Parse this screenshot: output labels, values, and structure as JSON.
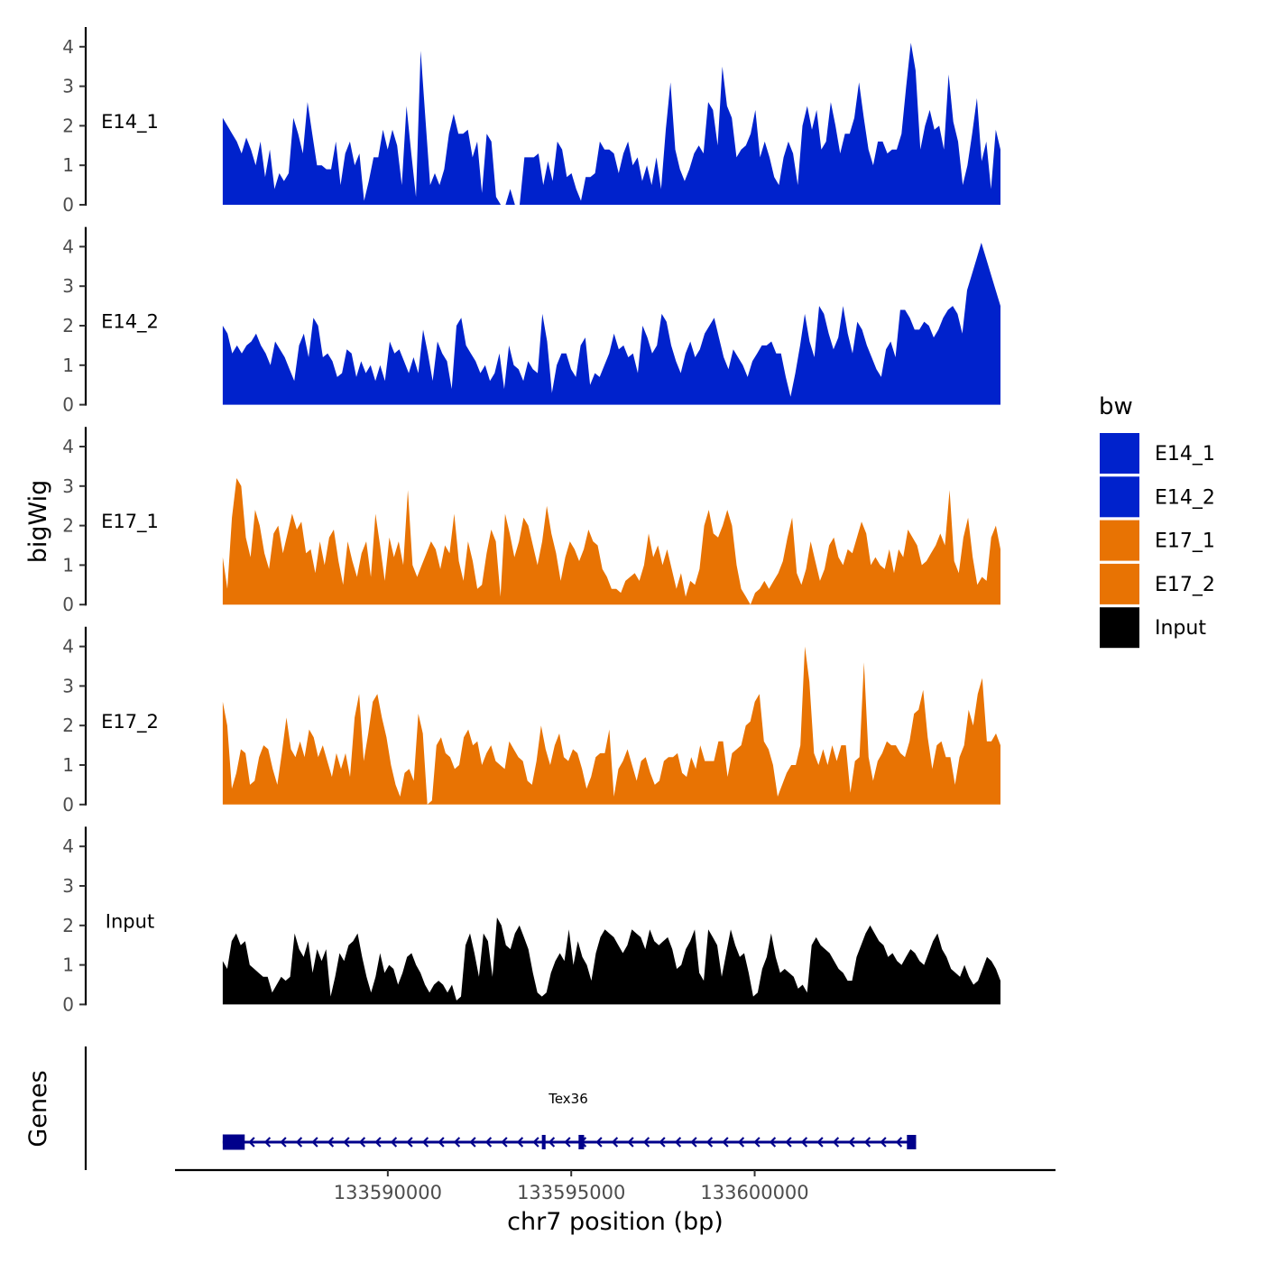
{
  "chart_data": {
    "type": "area",
    "ylabel": "bigWig",
    "xlabel": "chr7 position (bp)",
    "genes_label": "Genes",
    "ylim": [
      0,
      4.3
    ],
    "yticks": [
      0,
      1,
      2,
      3,
      4
    ],
    "xlim": [
      133584200,
      133608200
    ],
    "xticks": [
      133590000,
      133595000,
      133600000
    ],
    "xtick_labels": [
      "133590000",
      "133595000",
      "133600000"
    ],
    "x_start": 133585500,
    "x_end": 133606700,
    "legend": {
      "title": "bw",
      "position": "right"
    },
    "series": [
      {
        "name": "E14_1",
        "color": "#0022CC",
        "values": [
          2.2,
          2.0,
          1.8,
          1.6,
          1.3,
          1.7,
          1.4,
          1.0,
          1.6,
          0.7,
          1.4,
          0.4,
          0.8,
          0.6,
          0.8,
          2.2,
          1.8,
          1.3,
          2.6,
          1.8,
          1.0,
          1.0,
          0.9,
          0.9,
          1.6,
          0.5,
          1.3,
          1.6,
          1.0,
          1.3,
          0.1,
          0.6,
          1.2,
          1.2,
          1.9,
          1.4,
          1.9,
          1.5,
          0.5,
          2.5,
          1.3,
          0.2,
          3.9,
          2.2,
          0.5,
          0.8,
          0.5,
          0.9,
          1.8,
          2.3,
          1.8,
          1.8,
          1.9,
          1.2,
          1.6,
          0.3,
          1.8,
          1.6,
          0.2,
          0.0,
          0.0,
          0.4,
          0.0,
          0.0,
          1.2,
          1.2,
          1.2,
          1.3,
          0.5,
          1.1,
          0.6,
          1.6,
          1.4,
          0.7,
          0.8,
          0.4,
          0.1,
          0.7,
          0.7,
          0.8,
          1.6,
          1.4,
          1.4,
          1.3,
          0.8,
          1.3,
          1.6,
          1.0,
          1.2,
          0.6,
          1.0,
          0.5,
          1.2,
          0.4,
          1.9,
          3.1,
          1.4,
          0.9,
          0.6,
          0.9,
          1.3,
          1.5,
          1.3,
          2.6,
          2.4,
          1.5,
          3.5,
          2.5,
          2.2,
          1.2,
          1.4,
          1.5,
          1.8,
          2.4,
          1.2,
          1.6,
          1.2,
          0.7,
          0.5,
          1.2,
          1.6,
          1.3,
          0.5,
          2.0,
          2.5,
          1.9,
          2.4,
          1.4,
          1.6,
          2.6,
          2.0,
          1.3,
          1.8,
          1.8,
          2.2,
          3.1,
          2.2,
          1.4,
          1.0,
          1.6,
          1.6,
          1.3,
          1.4,
          1.4,
          1.8,
          3.0,
          4.1,
          3.4,
          1.4,
          2.0,
          2.4,
          1.9,
          2.0,
          1.4,
          3.3,
          2.1,
          1.6,
          0.5,
          1.0,
          1.8,
          2.7,
          1.1,
          1.6,
          0.4,
          1.9,
          1.4
        ]
      },
      {
        "name": "E14_2",
        "color": "#0022CC",
        "values": [
          2.0,
          1.8,
          1.3,
          1.5,
          1.3,
          1.5,
          1.6,
          1.8,
          1.5,
          1.3,
          1.0,
          1.6,
          1.4,
          1.2,
          0.9,
          0.6,
          1.5,
          1.8,
          1.2,
          2.2,
          2.0,
          1.2,
          1.3,
          1.1,
          0.7,
          0.8,
          1.4,
          1.3,
          0.7,
          1.1,
          0.8,
          1.0,
          0.6,
          1.0,
          0.6,
          1.6,
          1.3,
          1.4,
          1.1,
          0.8,
          1.2,
          0.8,
          1.9,
          1.3,
          0.6,
          1.6,
          1.3,
          1.1,
          0.4,
          2.0,
          2.2,
          1.5,
          1.3,
          1.1,
          0.8,
          1.0,
          0.6,
          0.8,
          1.3,
          0.4,
          1.5,
          1.0,
          0.9,
          0.6,
          1.1,
          0.9,
          0.8,
          2.3,
          1.6,
          0.3,
          1.0,
          1.3,
          1.3,
          0.9,
          0.7,
          1.5,
          1.7,
          0.5,
          0.8,
          0.7,
          1.0,
          1.3,
          1.8,
          1.4,
          1.5,
          1.2,
          1.3,
          0.8,
          2.0,
          1.7,
          1.3,
          1.5,
          2.3,
          2.1,
          1.5,
          1.1,
          0.8,
          1.3,
          1.6,
          1.2,
          1.4,
          1.8,
          2.0,
          2.2,
          1.7,
          1.2,
          0.9,
          1.4,
          1.2,
          1.0,
          0.7,
          1.1,
          1.3,
          1.5,
          1.5,
          1.6,
          1.3,
          1.3,
          0.7,
          0.2,
          0.8,
          1.5,
          2.3,
          1.6,
          1.2,
          2.5,
          2.3,
          1.8,
          1.4,
          1.7,
          2.5,
          1.8,
          1.3,
          2.1,
          1.9,
          1.5,
          1.2,
          0.9,
          0.7,
          1.4,
          1.6,
          1.2,
          2.4,
          2.4,
          2.2,
          1.9,
          1.9,
          2.1,
          2.0,
          1.7,
          1.9,
          2.2,
          2.4,
          2.5,
          2.3,
          1.8,
          2.9,
          3.3,
          3.7,
          4.1,
          3.7,
          3.3,
          2.9,
          2.5
        ]
      },
      {
        "name": "E17_1",
        "color": "#E87303",
        "values": [
          1.2,
          0.4,
          2.2,
          3.2,
          3.0,
          1.7,
          1.2,
          2.4,
          2.0,
          1.3,
          0.9,
          1.8,
          2.0,
          1.3,
          1.8,
          2.3,
          1.9,
          2.1,
          1.3,
          1.4,
          0.8,
          1.6,
          1.0,
          1.7,
          1.9,
          1.1,
          0.5,
          1.6,
          1.1,
          0.7,
          1.3,
          1.6,
          0.7,
          2.3,
          1.5,
          0.6,
          1.7,
          1.2,
          1.6,
          1.0,
          2.9,
          1.0,
          0.7,
          1.0,
          1.3,
          1.6,
          1.4,
          0.9,
          1.5,
          1.3,
          2.3,
          1.1,
          0.6,
          1.6,
          1.1,
          0.4,
          0.5,
          1.3,
          1.9,
          1.6,
          0.2,
          2.3,
          1.8,
          1.2,
          1.6,
          2.2,
          2.0,
          1.5,
          1.0,
          1.6,
          2.5,
          1.8,
          1.3,
          0.6,
          1.2,
          1.6,
          1.4,
          1.1,
          1.4,
          1.9,
          1.6,
          1.5,
          0.9,
          0.7,
          0.4,
          0.4,
          0.3,
          0.6,
          0.7,
          0.8,
          0.6,
          1.0,
          1.8,
          1.2,
          1.5,
          1.0,
          1.4,
          0.9,
          0.4,
          0.8,
          0.2,
          0.6,
          0.5,
          0.9,
          2.0,
          2.4,
          1.8,
          1.7,
          2.0,
          2.4,
          2.0,
          1.0,
          0.4,
          0.2,
          0.0,
          0.3,
          0.4,
          0.6,
          0.4,
          0.6,
          0.8,
          1.1,
          1.7,
          2.2,
          0.8,
          0.5,
          0.9,
          1.6,
          1.1,
          0.6,
          0.9,
          1.5,
          1.7,
          1.2,
          1.0,
          1.4,
          1.3,
          1.7,
          2.1,
          1.8,
          1.0,
          1.2,
          1.0,
          0.9,
          1.4,
          0.8,
          1.4,
          1.2,
          1.9,
          1.7,
          1.5,
          1.0,
          1.1,
          1.3,
          1.5,
          1.8,
          1.5,
          2.9,
          1.1,
          0.8,
          1.7,
          2.2,
          1.2,
          0.5,
          0.7,
          0.6,
          1.7,
          2.0,
          1.4
        ]
      },
      {
        "name": "E17_2",
        "color": "#E87303",
        "values": [
          2.6,
          2.0,
          0.4,
          0.8,
          1.4,
          1.3,
          0.5,
          0.6,
          1.2,
          1.5,
          1.4,
          0.9,
          0.5,
          1.3,
          2.2,
          1.4,
          1.2,
          1.6,
          1.2,
          1.9,
          1.7,
          1.2,
          1.5,
          1.1,
          0.7,
          1.3,
          0.9,
          1.3,
          0.7,
          2.2,
          2.8,
          1.1,
          1.8,
          2.6,
          2.8,
          2.2,
          1.7,
          1.0,
          0.5,
          0.2,
          0.8,
          0.9,
          0.6,
          2.3,
          1.8,
          0.0,
          0.1,
          1.5,
          1.7,
          1.3,
          1.2,
          0.9,
          1.0,
          1.7,
          1.9,
          1.5,
          1.6,
          1.0,
          1.3,
          1.5,
          1.1,
          1.0,
          0.9,
          1.6,
          1.4,
          1.2,
          1.1,
          0.6,
          0.5,
          1.1,
          2.0,
          1.4,
          1.0,
          1.5,
          1.8,
          1.2,
          1.1,
          1.4,
          1.3,
          0.9,
          0.4,
          0.7,
          1.2,
          1.3,
          1.3,
          1.9,
          0.2,
          0.9,
          1.1,
          1.4,
          1.0,
          0.6,
          1.1,
          1.2,
          0.8,
          0.5,
          0.6,
          1.1,
          1.2,
          1.2,
          1.3,
          0.8,
          0.7,
          1.2,
          0.9,
          1.5,
          1.1,
          1.1,
          1.1,
          1.6,
          1.6,
          0.7,
          1.3,
          1.4,
          1.5,
          2.0,
          2.1,
          2.6,
          2.8,
          1.6,
          1.4,
          1.0,
          0.2,
          0.5,
          0.8,
          1.0,
          1.0,
          1.5,
          4.0,
          3.1,
          1.3,
          1.0,
          1.4,
          1.0,
          1.5,
          1.1,
          1.5,
          1.5,
          0.3,
          1.1,
          1.2,
          3.6,
          1.2,
          0.6,
          1.1,
          1.3,
          1.6,
          1.5,
          1.5,
          1.3,
          1.2,
          1.6,
          2.3,
          2.4,
          2.9,
          1.7,
          0.9,
          1.5,
          1.6,
          1.2,
          1.2,
          0.5,
          1.2,
          1.5,
          2.4,
          2.0,
          2.8,
          3.2,
          1.6,
          1.6,
          1.8,
          1.5
        ]
      },
      {
        "name": "Input",
        "color": "#000000",
        "values": [
          1.1,
          0.9,
          1.6,
          1.8,
          1.5,
          1.6,
          1.0,
          0.9,
          0.8,
          0.7,
          0.7,
          0.3,
          0.5,
          0.7,
          0.6,
          0.7,
          1.8,
          1.4,
          1.2,
          1.6,
          0.8,
          1.4,
          1.1,
          1.4,
          0.2,
          0.7,
          1.3,
          1.1,
          1.5,
          1.6,
          1.8,
          1.2,
          0.7,
          0.3,
          0.7,
          1.3,
          0.8,
          1.0,
          0.9,
          0.5,
          0.8,
          1.2,
          1.3,
          1.0,
          0.8,
          0.5,
          0.3,
          0.5,
          0.6,
          0.5,
          0.3,
          0.5,
          0.1,
          0.2,
          1.5,
          1.8,
          1.3,
          0.7,
          1.8,
          1.6,
          0.7,
          2.2,
          2.0,
          1.5,
          1.4,
          1.8,
          2.0,
          1.7,
          1.4,
          0.8,
          0.3,
          0.2,
          0.3,
          0.8,
          1.1,
          1.3,
          1.1,
          1.9,
          1.0,
          1.6,
          1.2,
          1.0,
          0.6,
          1.3,
          1.7,
          1.9,
          1.8,
          1.7,
          1.5,
          1.3,
          1.5,
          1.9,
          1.8,
          1.7,
          1.4,
          1.9,
          1.6,
          1.5,
          1.6,
          1.7,
          1.4,
          0.9,
          1.0,
          1.4,
          1.6,
          1.9,
          0.8,
          0.6,
          1.9,
          1.7,
          1.5,
          0.7,
          1.3,
          1.9,
          1.5,
          1.2,
          1.3,
          0.8,
          0.2,
          0.3,
          0.9,
          1.2,
          1.8,
          1.2,
          0.8,
          0.9,
          0.8,
          0.7,
          0.4,
          0.5,
          0.3,
          1.5,
          1.7,
          1.5,
          1.4,
          1.3,
          1.1,
          0.9,
          0.8,
          0.6,
          0.6,
          1.2,
          1.5,
          1.8,
          2.0,
          1.8,
          1.6,
          1.5,
          1.2,
          1.3,
          1.1,
          1.0,
          1.2,
          1.4,
          1.3,
          1.1,
          1.0,
          1.3,
          1.6,
          1.8,
          1.4,
          1.2,
          0.9,
          0.8,
          0.7,
          1.0,
          0.7,
          0.5,
          0.6,
          0.9,
          1.2,
          1.1,
          0.9,
          0.6
        ]
      }
    ],
    "gene_track": {
      "gene_name": "Tex36",
      "strand": "-",
      "start": 133585500,
      "end": 133604400,
      "color": "#00008B",
      "exons": [
        [
          133585500,
          133586100
        ],
        [
          133594200,
          133594300
        ],
        [
          133595200,
          133595350
        ],
        [
          133604150,
          133604400
        ]
      ]
    }
  }
}
